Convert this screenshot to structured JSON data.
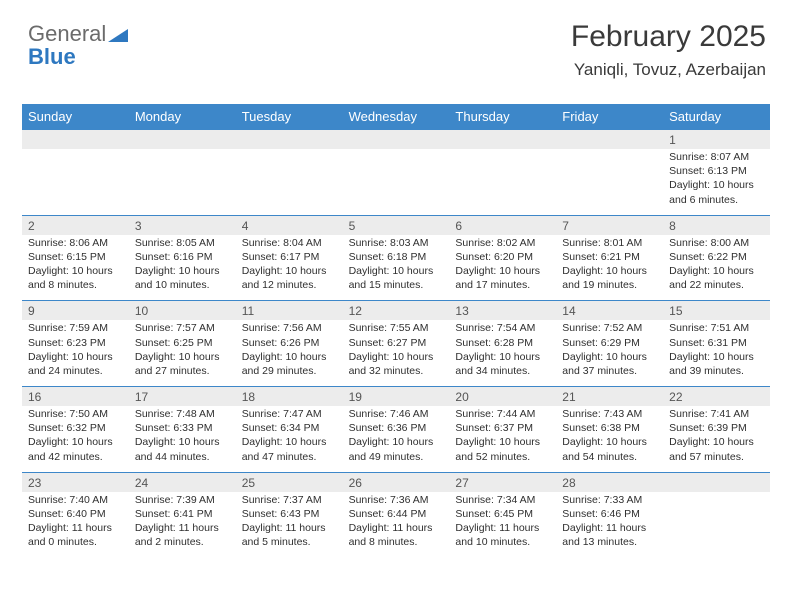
{
  "brand": {
    "word1": "General",
    "word2": "Blue",
    "accent_color": "#2e78c0",
    "text_color": "#6b6b6b"
  },
  "header": {
    "month_title": "February 2025",
    "location": "Yaniqli, Tovuz, Azerbaijan",
    "title_color": "#3a3a3a",
    "title_fontsize": 30,
    "loc_fontsize": 17
  },
  "calendar": {
    "header_bg": "#3d87c9",
    "header_text_color": "#ffffff",
    "daynum_bg": "#ececec",
    "sep_color": "#3d87c9",
    "body_text_color": "#2f2f2f",
    "day_names": [
      "Sunday",
      "Monday",
      "Tuesday",
      "Wednesday",
      "Thursday",
      "Friday",
      "Saturday"
    ],
    "weeks": [
      {
        "nums": [
          "",
          "",
          "",
          "",
          "",
          "",
          "1"
        ],
        "cells": [
          null,
          null,
          null,
          null,
          null,
          null,
          {
            "sunrise": "Sunrise: 8:07 AM",
            "sunset": "Sunset: 6:13 PM",
            "day1": "Daylight: 10 hours",
            "day2": "and 6 minutes."
          }
        ]
      },
      {
        "nums": [
          "2",
          "3",
          "4",
          "5",
          "6",
          "7",
          "8"
        ],
        "cells": [
          {
            "sunrise": "Sunrise: 8:06 AM",
            "sunset": "Sunset: 6:15 PM",
            "day1": "Daylight: 10 hours",
            "day2": "and 8 minutes."
          },
          {
            "sunrise": "Sunrise: 8:05 AM",
            "sunset": "Sunset: 6:16 PM",
            "day1": "Daylight: 10 hours",
            "day2": "and 10 minutes."
          },
          {
            "sunrise": "Sunrise: 8:04 AM",
            "sunset": "Sunset: 6:17 PM",
            "day1": "Daylight: 10 hours",
            "day2": "and 12 minutes."
          },
          {
            "sunrise": "Sunrise: 8:03 AM",
            "sunset": "Sunset: 6:18 PM",
            "day1": "Daylight: 10 hours",
            "day2": "and 15 minutes."
          },
          {
            "sunrise": "Sunrise: 8:02 AM",
            "sunset": "Sunset: 6:20 PM",
            "day1": "Daylight: 10 hours",
            "day2": "and 17 minutes."
          },
          {
            "sunrise": "Sunrise: 8:01 AM",
            "sunset": "Sunset: 6:21 PM",
            "day1": "Daylight: 10 hours",
            "day2": "and 19 minutes."
          },
          {
            "sunrise": "Sunrise: 8:00 AM",
            "sunset": "Sunset: 6:22 PM",
            "day1": "Daylight: 10 hours",
            "day2": "and 22 minutes."
          }
        ]
      },
      {
        "nums": [
          "9",
          "10",
          "11",
          "12",
          "13",
          "14",
          "15"
        ],
        "cells": [
          {
            "sunrise": "Sunrise: 7:59 AM",
            "sunset": "Sunset: 6:23 PM",
            "day1": "Daylight: 10 hours",
            "day2": "and 24 minutes."
          },
          {
            "sunrise": "Sunrise: 7:57 AM",
            "sunset": "Sunset: 6:25 PM",
            "day1": "Daylight: 10 hours",
            "day2": "and 27 minutes."
          },
          {
            "sunrise": "Sunrise: 7:56 AM",
            "sunset": "Sunset: 6:26 PM",
            "day1": "Daylight: 10 hours",
            "day2": "and 29 minutes."
          },
          {
            "sunrise": "Sunrise: 7:55 AM",
            "sunset": "Sunset: 6:27 PM",
            "day1": "Daylight: 10 hours",
            "day2": "and 32 minutes."
          },
          {
            "sunrise": "Sunrise: 7:54 AM",
            "sunset": "Sunset: 6:28 PM",
            "day1": "Daylight: 10 hours",
            "day2": "and 34 minutes."
          },
          {
            "sunrise": "Sunrise: 7:52 AM",
            "sunset": "Sunset: 6:29 PM",
            "day1": "Daylight: 10 hours",
            "day2": "and 37 minutes."
          },
          {
            "sunrise": "Sunrise: 7:51 AM",
            "sunset": "Sunset: 6:31 PM",
            "day1": "Daylight: 10 hours",
            "day2": "and 39 minutes."
          }
        ]
      },
      {
        "nums": [
          "16",
          "17",
          "18",
          "19",
          "20",
          "21",
          "22"
        ],
        "cells": [
          {
            "sunrise": "Sunrise: 7:50 AM",
            "sunset": "Sunset: 6:32 PM",
            "day1": "Daylight: 10 hours",
            "day2": "and 42 minutes."
          },
          {
            "sunrise": "Sunrise: 7:48 AM",
            "sunset": "Sunset: 6:33 PM",
            "day1": "Daylight: 10 hours",
            "day2": "and 44 minutes."
          },
          {
            "sunrise": "Sunrise: 7:47 AM",
            "sunset": "Sunset: 6:34 PM",
            "day1": "Daylight: 10 hours",
            "day2": "and 47 minutes."
          },
          {
            "sunrise": "Sunrise: 7:46 AM",
            "sunset": "Sunset: 6:36 PM",
            "day1": "Daylight: 10 hours",
            "day2": "and 49 minutes."
          },
          {
            "sunrise": "Sunrise: 7:44 AM",
            "sunset": "Sunset: 6:37 PM",
            "day1": "Daylight: 10 hours",
            "day2": "and 52 minutes."
          },
          {
            "sunrise": "Sunrise: 7:43 AM",
            "sunset": "Sunset: 6:38 PM",
            "day1": "Daylight: 10 hours",
            "day2": "and 54 minutes."
          },
          {
            "sunrise": "Sunrise: 7:41 AM",
            "sunset": "Sunset: 6:39 PM",
            "day1": "Daylight: 10 hours",
            "day2": "and 57 minutes."
          }
        ]
      },
      {
        "nums": [
          "23",
          "24",
          "25",
          "26",
          "27",
          "28",
          ""
        ],
        "cells": [
          {
            "sunrise": "Sunrise: 7:40 AM",
            "sunset": "Sunset: 6:40 PM",
            "day1": "Daylight: 11 hours",
            "day2": "and 0 minutes."
          },
          {
            "sunrise": "Sunrise: 7:39 AM",
            "sunset": "Sunset: 6:41 PM",
            "day1": "Daylight: 11 hours",
            "day2": "and 2 minutes."
          },
          {
            "sunrise": "Sunrise: 7:37 AM",
            "sunset": "Sunset: 6:43 PM",
            "day1": "Daylight: 11 hours",
            "day2": "and 5 minutes."
          },
          {
            "sunrise": "Sunrise: 7:36 AM",
            "sunset": "Sunset: 6:44 PM",
            "day1": "Daylight: 11 hours",
            "day2": "and 8 minutes."
          },
          {
            "sunrise": "Sunrise: 7:34 AM",
            "sunset": "Sunset: 6:45 PM",
            "day1": "Daylight: 11 hours",
            "day2": "and 10 minutes."
          },
          {
            "sunrise": "Sunrise: 7:33 AM",
            "sunset": "Sunset: 6:46 PM",
            "day1": "Daylight: 11 hours",
            "day2": "and 13 minutes."
          },
          null
        ]
      }
    ]
  }
}
